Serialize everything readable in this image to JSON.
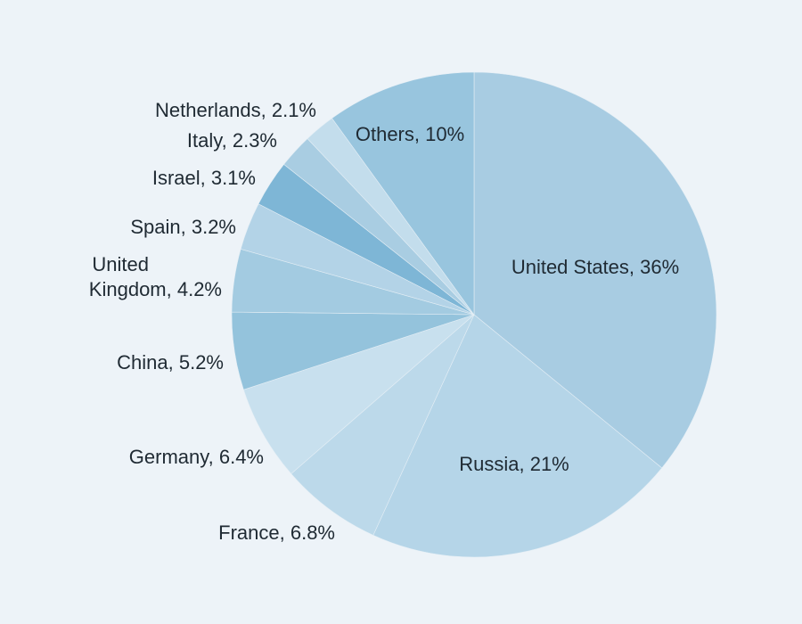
{
  "chart_data": {
    "type": "pie",
    "title": "",
    "start_angle_deg": 0,
    "direction": "clockwise",
    "legend": "none",
    "slices": [
      {
        "label": "United States, 36%",
        "value": 36,
        "color": "#a8cce2"
      },
      {
        "label": "Russia, 21%",
        "value": 21,
        "color": "#b5d5e8"
      },
      {
        "label": "France, 6.8%",
        "value": 6.8,
        "color": "#bcd9ea"
      },
      {
        "label": "Germany, 6.4%",
        "value": 6.4,
        "color": "#c8e0ee"
      },
      {
        "label": "China, 5.2%",
        "value": 5.2,
        "color": "#94c3dc"
      },
      {
        "label": "United Kingdom, 4.2%",
        "value": 4.2,
        "color": "#a3cbe1"
      },
      {
        "label": "Spain, 3.2%",
        "value": 3.2,
        "color": "#b3d3e7"
      },
      {
        "label": "Israel, 3.1%",
        "value": 3.1,
        "color": "#7eb6d6"
      },
      {
        "label": "Italy, 2.3%",
        "value": 2.3,
        "color": "#a9cde2"
      },
      {
        "label": "Netherlands, 2.1%",
        "value": 2.1,
        "color": "#c3ddec"
      },
      {
        "label": "Others, 10%",
        "value": 10,
        "color": "#98c5de"
      }
    ]
  }
}
